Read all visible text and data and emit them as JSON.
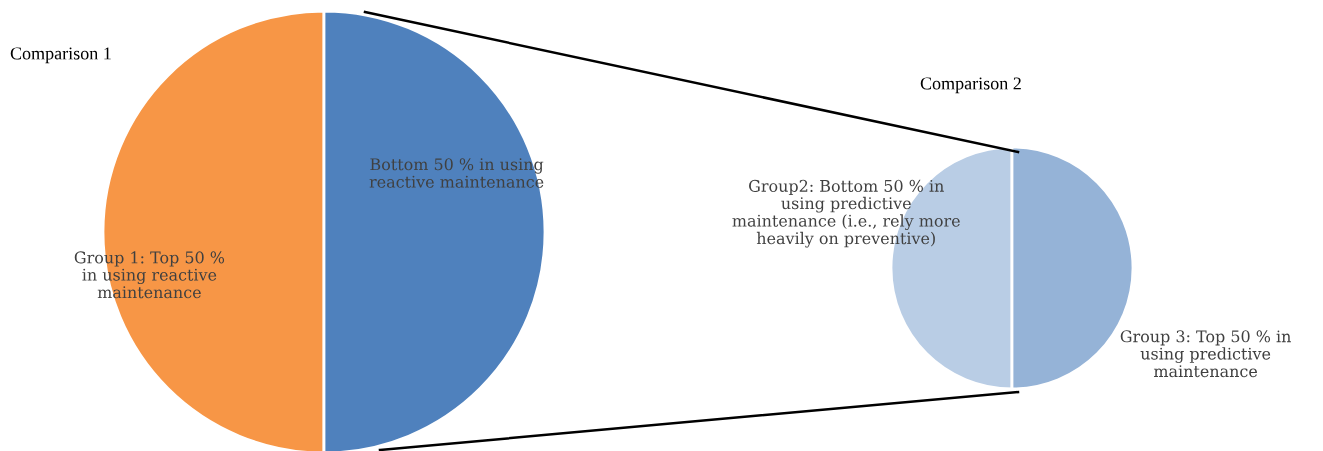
{
  "chart_data": [
    {
      "type": "pie",
      "title": "Comparison 1",
      "categories": [
        "Group 1: Top 50 %\nin using reactive\nmaintenance",
        "Bottom 50 % in using\nreactive maintenance"
      ],
      "values": [
        50,
        50
      ],
      "colors": [
        "#f79646",
        "#4f81bd"
      ]
    },
    {
      "type": "pie",
      "title": "Comparison 2",
      "categories": [
        "Group2: Bottom 50 % in\nusing predictive\nmaintenance (i.e., rely more\nheavily on preventive)",
        "Group 3: Top 50 % in\nusing predictive\nmaintenance"
      ],
      "values": [
        50,
        50
      ],
      "colors": [
        "#b9cde5",
        "#95b3d7"
      ]
    }
  ]
}
